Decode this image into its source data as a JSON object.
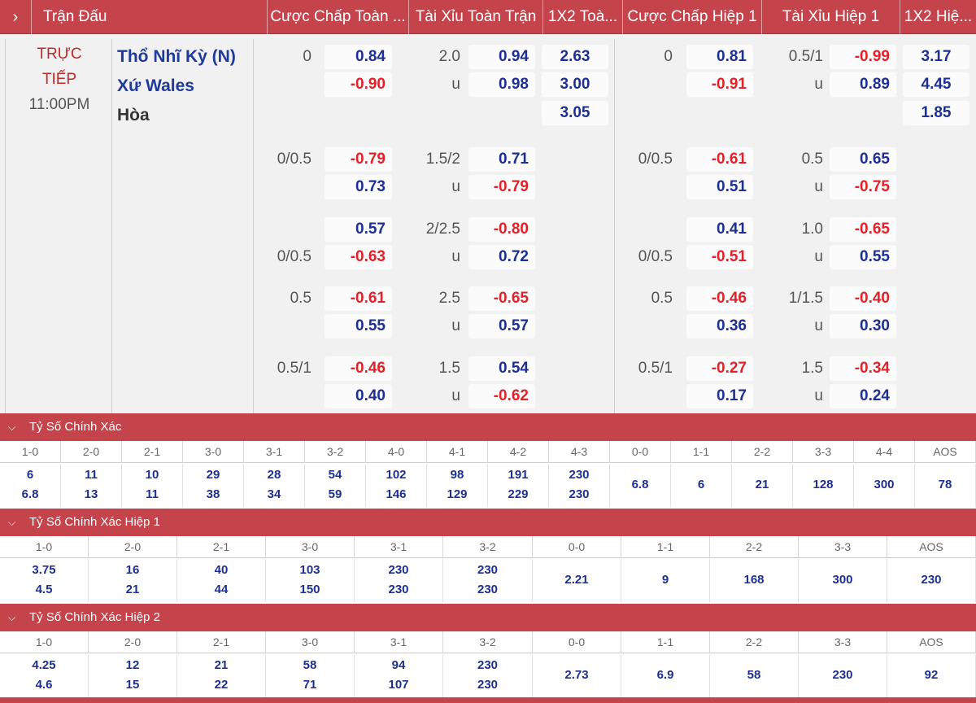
{
  "header": {
    "expand_icon": "chevron-right-icon",
    "columns": [
      "Trận Đấu",
      "Cược Chấp Toàn ...",
      "Tài Xỉu Toàn Trận",
      "1X2 Toà...",
      "Cược Chấp Hiệp 1",
      "Tài Xỉu Hiệp 1",
      "1X2 Hiệ..."
    ]
  },
  "match": {
    "status_line1": "TRỰC",
    "status_line2": "TIẾP",
    "time": "11:00PM",
    "home_team": "Thổ Nhĩ Kỳ (N)",
    "away_team": "Xứ Wales",
    "draw_label": "Hòa"
  },
  "markets": [
    {
      "hdp_ft": {
        "h_label": "0",
        "h_odd": "0.84",
        "a_label": "",
        "a_odd": "-0.90"
      },
      "ou_ft": {
        "o_label": "2.0",
        "o_odd": "0.94",
        "u_label": "u",
        "u_odd": "0.98"
      },
      "x12_ft": {
        "home": "2.63",
        "away": "3.00",
        "draw": "3.05"
      },
      "hdp_h1": {
        "h_label": "0",
        "h_odd": "0.81",
        "a_label": "",
        "a_odd": "-0.91"
      },
      "ou_h1": {
        "o_label": "0.5/1",
        "o_odd": "-0.99",
        "u_label": "u",
        "u_odd": "0.89"
      },
      "x12_h1": {
        "home": "3.17",
        "away": "4.45",
        "draw": "1.85"
      }
    },
    {
      "hdp_ft": {
        "h_label": "0/0.5",
        "h_odd": "-0.79",
        "a_label": "",
        "a_odd": "0.73"
      },
      "ou_ft": {
        "o_label": "1.5/2",
        "o_odd": "0.71",
        "u_label": "u",
        "u_odd": "-0.79"
      },
      "hdp_h1": {
        "h_label": "0/0.5",
        "h_odd": "-0.61",
        "a_label": "",
        "a_odd": "0.51"
      },
      "ou_h1": {
        "o_label": "0.5",
        "o_odd": "0.65",
        "u_label": "u",
        "u_odd": "-0.75"
      }
    },
    {
      "hdp_ft": {
        "h_label": "",
        "h_odd": "0.57",
        "a_label": "0/0.5",
        "a_odd": "-0.63"
      },
      "ou_ft": {
        "o_label": "2/2.5",
        "o_odd": "-0.80",
        "u_label": "u",
        "u_odd": "0.72"
      },
      "hdp_h1": {
        "h_label": "",
        "h_odd": "0.41",
        "a_label": "0/0.5",
        "a_odd": "-0.51"
      },
      "ou_h1": {
        "o_label": "1.0",
        "o_odd": "-0.65",
        "u_label": "u",
        "u_odd": "0.55"
      }
    },
    {
      "hdp_ft": {
        "h_label": "0.5",
        "h_odd": "-0.61",
        "a_label": "",
        "a_odd": "0.55"
      },
      "ou_ft": {
        "o_label": "2.5",
        "o_odd": "-0.65",
        "u_label": "u",
        "u_odd": "0.57"
      },
      "hdp_h1": {
        "h_label": "0.5",
        "h_odd": "-0.46",
        "a_label": "",
        "a_odd": "0.36"
      },
      "ou_h1": {
        "o_label": "1/1.5",
        "o_odd": "-0.40",
        "u_label": "u",
        "u_odd": "0.30"
      }
    },
    {
      "hdp_ft": {
        "h_label": "0.5/1",
        "h_odd": "-0.46",
        "a_label": "",
        "a_odd": "0.40"
      },
      "ou_ft": {
        "o_label": "1.5",
        "o_odd": "0.54",
        "u_label": "u",
        "u_odd": "-0.62"
      },
      "hdp_h1": {
        "h_label": "0.5/1",
        "h_odd": "-0.27",
        "a_label": "",
        "a_odd": "0.17"
      },
      "ou_h1": {
        "o_label": "1.5",
        "o_odd": "-0.34",
        "u_label": "u",
        "u_odd": "0.24"
      }
    }
  ],
  "correct_score": {
    "title": "Tỷ Số Chính Xác",
    "collapse_icon": "chevron-down-icon",
    "cols": [
      {
        "score": "1-0",
        "v1": "6",
        "v2": "6.8"
      },
      {
        "score": "2-0",
        "v1": "11",
        "v2": "13"
      },
      {
        "score": "2-1",
        "v1": "10",
        "v2": "11"
      },
      {
        "score": "3-0",
        "v1": "29",
        "v2": "38"
      },
      {
        "score": "3-1",
        "v1": "28",
        "v2": "34"
      },
      {
        "score": "3-2",
        "v1": "54",
        "v2": "59"
      },
      {
        "score": "4-0",
        "v1": "102",
        "v2": "146"
      },
      {
        "score": "4-1",
        "v1": "98",
        "v2": "129"
      },
      {
        "score": "4-2",
        "v1": "191",
        "v2": "229"
      },
      {
        "score": "4-3",
        "v1": "230",
        "v2": "230"
      },
      {
        "score": "0-0",
        "v1": "6.8"
      },
      {
        "score": "1-1",
        "v1": "6"
      },
      {
        "score": "2-2",
        "v1": "21"
      },
      {
        "score": "3-3",
        "v1": "128"
      },
      {
        "score": "4-4",
        "v1": "300"
      },
      {
        "score": "AOS",
        "v1": "78"
      }
    ]
  },
  "correct_score_h1": {
    "title": "Tỷ Số Chính Xác Hiệp 1",
    "collapse_icon": "chevron-down-icon",
    "cols": [
      {
        "score": "1-0",
        "v1": "3.75",
        "v2": "4.5"
      },
      {
        "score": "2-0",
        "v1": "16",
        "v2": "21"
      },
      {
        "score": "2-1",
        "v1": "40",
        "v2": "44"
      },
      {
        "score": "3-0",
        "v1": "103",
        "v2": "150"
      },
      {
        "score": "3-1",
        "v1": "230",
        "v2": "230"
      },
      {
        "score": "3-2",
        "v1": "230",
        "v2": "230"
      },
      {
        "score": "0-0",
        "v1": "2.21"
      },
      {
        "score": "1-1",
        "v1": "9"
      },
      {
        "score": "2-2",
        "v1": "168"
      },
      {
        "score": "3-3",
        "v1": "300"
      },
      {
        "score": "AOS",
        "v1": "230"
      }
    ]
  },
  "correct_score_h2": {
    "title": "Tỷ Số Chính Xác Hiệp 2",
    "collapse_icon": "chevron-down-icon",
    "cols": [
      {
        "score": "1-0",
        "v1": "4.25",
        "v2": "4.6"
      },
      {
        "score": "2-0",
        "v1": "12",
        "v2": "15"
      },
      {
        "score": "2-1",
        "v1": "21",
        "v2": "22"
      },
      {
        "score": "3-0",
        "v1": "58",
        "v2": "71"
      },
      {
        "score": "3-1",
        "v1": "94",
        "v2": "107"
      },
      {
        "score": "3-2",
        "v1": "230",
        "v2": "230"
      },
      {
        "score": "0-0",
        "v1": "2.73"
      },
      {
        "score": "1-1",
        "v1": "6.9"
      },
      {
        "score": "2-2",
        "v1": "58"
      },
      {
        "score": "3-3",
        "v1": "230"
      },
      {
        "score": "AOS",
        "v1": "92"
      }
    ]
  },
  "colors": {
    "header_bg": "#c5444c",
    "odd_positive": "#1e2f92",
    "odd_negative": "#e0232a",
    "live": "#c02a2a"
  }
}
